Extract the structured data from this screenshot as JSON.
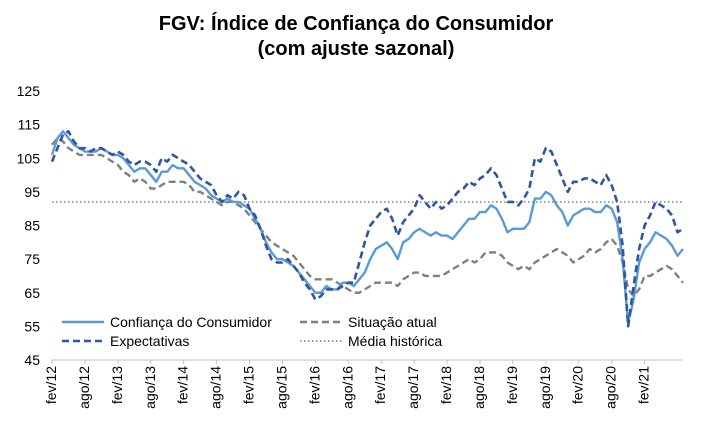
{
  "chart_data": {
    "type": "line",
    "title": "FGV: Índice de Confiança do Consumidor",
    "subtitle": "(com ajuste sazonal)",
    "xlabel": "",
    "ylabel": "",
    "ylim": [
      45,
      125
    ],
    "yticks": [
      45,
      55,
      65,
      75,
      85,
      95,
      105,
      115,
      125
    ],
    "x_tick_labels": [
      "fev/12",
      "ago/12",
      "fev/13",
      "ago/13",
      "fev/14",
      "ago/14",
      "fev/15",
      "ago/15",
      "fev/16",
      "ago/16",
      "fev/17",
      "ago/17",
      "fev/18",
      "ago/18",
      "fev/19",
      "ago/19",
      "fev/20",
      "ago/20",
      "fev/21"
    ],
    "x_start": "fev/12",
    "x_end": "fev/21",
    "grid": false,
    "legend": "bottom-left",
    "reference_line": {
      "name": "Média histórica",
      "value": 92,
      "color": "#808080",
      "style": "dotted"
    },
    "series": [
      {
        "name": "Confiança do Consumidor",
        "color": "#5b9bd5",
        "style": "solid",
        "values": [
          106,
          111,
          113,
          111,
          109,
          108,
          107,
          107,
          107,
          108,
          107,
          106,
          106,
          105,
          103,
          101,
          102,
          102,
          100,
          98,
          101,
          101,
          103,
          102,
          102,
          100,
          98,
          97,
          96,
          94,
          93,
          92,
          93,
          92,
          92,
          91,
          90,
          87,
          84,
          80,
          77,
          75,
          75,
          74,
          73,
          71,
          69,
          67,
          65,
          65,
          67,
          66,
          66,
          68,
          68,
          67,
          69,
          71,
          75,
          78,
          79,
          80,
          78,
          75,
          80,
          81,
          83,
          84,
          83,
          82,
          83,
          82,
          82,
          81,
          83,
          85,
          87,
          87,
          89,
          89,
          91,
          90,
          87,
          83,
          84,
          84,
          84,
          86,
          93,
          93,
          95,
          94,
          91,
          89,
          85,
          88,
          89,
          90,
          90,
          89,
          89,
          91,
          90,
          86,
          75,
          56,
          63,
          74,
          78,
          80,
          83,
          82,
          81,
          79,
          76,
          78
        ]
      },
      {
        "name": "Situação atual",
        "color": "#808080",
        "style": "dashed",
        "values": [
          109,
          111,
          110,
          108,
          107,
          106,
          106,
          106,
          106,
          106,
          105,
          104,
          103,
          101,
          100,
          98,
          99,
          98,
          96,
          96,
          97,
          98,
          98,
          98,
          98,
          97,
          95,
          95,
          94,
          93,
          92,
          91,
          92,
          92,
          91,
          90,
          88,
          86,
          84,
          82,
          80,
          79,
          78,
          77,
          76,
          74,
          72,
          70,
          69,
          69,
          69,
          69,
          68,
          67,
          66,
          65,
          65,
          66,
          67,
          68,
          68,
          68,
          68,
          67,
          69,
          70,
          71,
          71,
          70,
          70,
          70,
          70,
          71,
          72,
          73,
          74,
          75,
          74,
          75,
          77,
          77,
          77,
          76,
          74,
          73,
          72,
          73,
          72,
          74,
          75,
          76,
          77,
          78,
          77,
          76,
          74,
          75,
          76,
          78,
          77,
          78,
          80,
          81,
          79,
          74,
          66,
          64,
          66,
          70,
          70,
          71,
          72,
          73,
          72,
          70,
          68
        ]
      },
      {
        "name": "Expectativas",
        "color": "#2f55a3",
        "style": "dashed",
        "values": [
          104,
          108,
          112,
          113,
          110,
          108,
          108,
          107,
          108,
          108,
          107,
          106,
          107,
          106,
          104,
          103,
          104,
          104,
          103,
          101,
          105,
          104,
          106,
          105,
          104,
          103,
          101,
          99,
          98,
          97,
          94,
          92,
          94,
          93,
          95,
          94,
          90,
          88,
          84,
          79,
          75,
          74,
          74,
          75,
          73,
          71,
          68,
          66,
          63,
          64,
          66,
          66,
          66,
          67,
          68,
          68,
          74,
          80,
          85,
          87,
          89,
          90,
          87,
          82,
          86,
          88,
          90,
          94,
          92,
          90,
          92,
          90,
          91,
          93,
          95,
          96,
          98,
          97,
          99,
          100,
          102,
          100,
          96,
          92,
          92,
          91,
          93,
          96,
          105,
          104,
          108,
          107,
          103,
          99,
          95,
          98,
          98,
          99,
          99,
          98,
          97,
          100,
          97,
          92,
          79,
          55,
          67,
          78,
          85,
          88,
          92,
          91,
          90,
          88,
          83,
          84
        ]
      }
    ]
  }
}
